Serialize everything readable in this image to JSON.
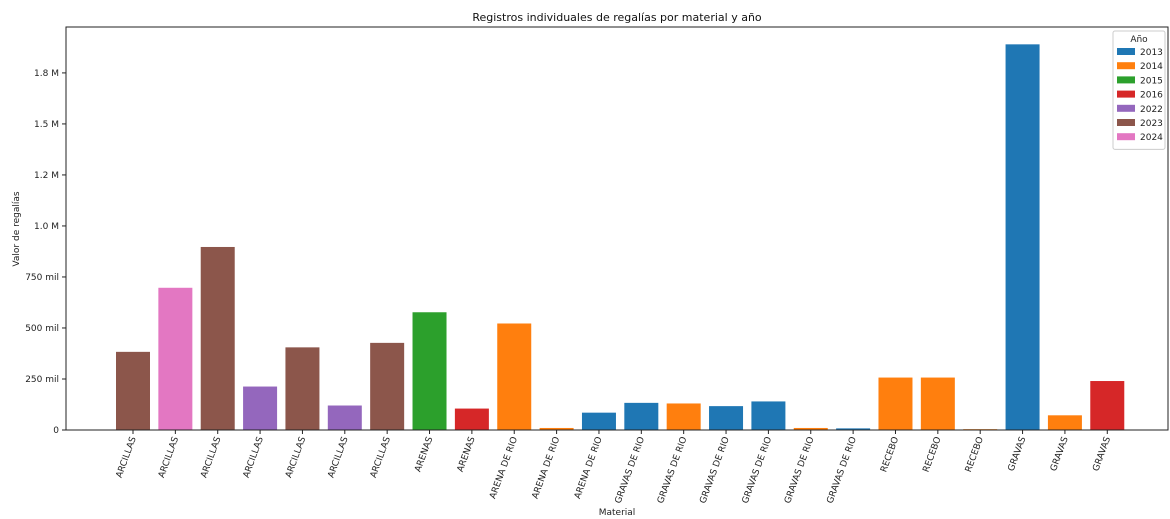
{
  "chart_data": {
    "type": "bar",
    "title": "Registros individuales de regalías por material y año",
    "xlabel": "Material",
    "ylabel": "Valor de regalías",
    "ylim": [
      0,
      1975000
    ],
    "yticks": [
      {
        "value": 0,
        "label": "0"
      },
      {
        "value": 250000,
        "label": "250 mil"
      },
      {
        "value": 500000,
        "label": "500 mil"
      },
      {
        "value": 750000,
        "label": "750 mil"
      },
      {
        "value": 1000000,
        "label": "1.0 M"
      },
      {
        "value": 1250000,
        "label": "1.2 M"
      },
      {
        "value": 1500000,
        "label": "1.5 M"
      },
      {
        "value": 1750000,
        "label": "1.8 M"
      }
    ],
    "legend": {
      "title": "Año",
      "placement": "top-right",
      "entries": [
        {
          "label": "2013",
          "color": "#1f77b4"
        },
        {
          "label": "2014",
          "color": "#ff7f0e"
        },
        {
          "label": "2015",
          "color": "#2ca02c"
        },
        {
          "label": "2016",
          "color": "#d62728"
        },
        {
          "label": "2022",
          "color": "#9467bd"
        },
        {
          "label": "2023",
          "color": "#8c564b"
        },
        {
          "label": "2024",
          "color": "#e377c2"
        }
      ]
    },
    "bars": [
      {
        "category": "ARCILLAS",
        "year": "2023",
        "value": 383000
      },
      {
        "category": "ARCILLAS",
        "year": "2024",
        "value": 697000
      },
      {
        "category": "ARCILLAS",
        "year": "2023",
        "value": 897000
      },
      {
        "category": "ARCILLAS",
        "year": "2022",
        "value": 213000
      },
      {
        "category": "ARCILLAS",
        "year": "2023",
        "value": 405000
      },
      {
        "category": "ARCILLAS",
        "year": "2022",
        "value": 120000
      },
      {
        "category": "ARCILLAS",
        "year": "2023",
        "value": 427000
      },
      {
        "category": "ARENAS",
        "year": "2015",
        "value": 577000
      },
      {
        "category": "ARENAS",
        "year": "2016",
        "value": 105000
      },
      {
        "category": "ARENA DE RIO",
        "year": "2014",
        "value": 522000
      },
      {
        "category": "ARENA DE RIO",
        "year": "2014",
        "value": 10000
      },
      {
        "category": "ARENA DE RIO",
        "year": "2013",
        "value": 85000
      },
      {
        "category": "GRAVAS DE RIO",
        "year": "2013",
        "value": 133000
      },
      {
        "category": "GRAVAS DE RIO",
        "year": "2014",
        "value": 130000
      },
      {
        "category": "GRAVAS DE RIO",
        "year": "2013",
        "value": 117000
      },
      {
        "category": "GRAVAS DE RIO",
        "year": "2013",
        "value": 140000
      },
      {
        "category": "GRAVAS DE RIO",
        "year": "2014",
        "value": 10000
      },
      {
        "category": "GRAVAS DE RIO",
        "year": "2013",
        "value": 8000
      },
      {
        "category": "RECEBO",
        "year": "2014",
        "value": 257000
      },
      {
        "category": "RECEBO",
        "year": "2014",
        "value": 257000
      },
      {
        "category": "RECEBO",
        "year": "2014",
        "value": 4000
      },
      {
        "category": "GRAVAS",
        "year": "2013",
        "value": 1890000
      },
      {
        "category": "GRAVAS",
        "year": "2014",
        "value": 72000
      },
      {
        "category": "GRAVAS",
        "year": "2016",
        "value": 240000
      }
    ]
  }
}
